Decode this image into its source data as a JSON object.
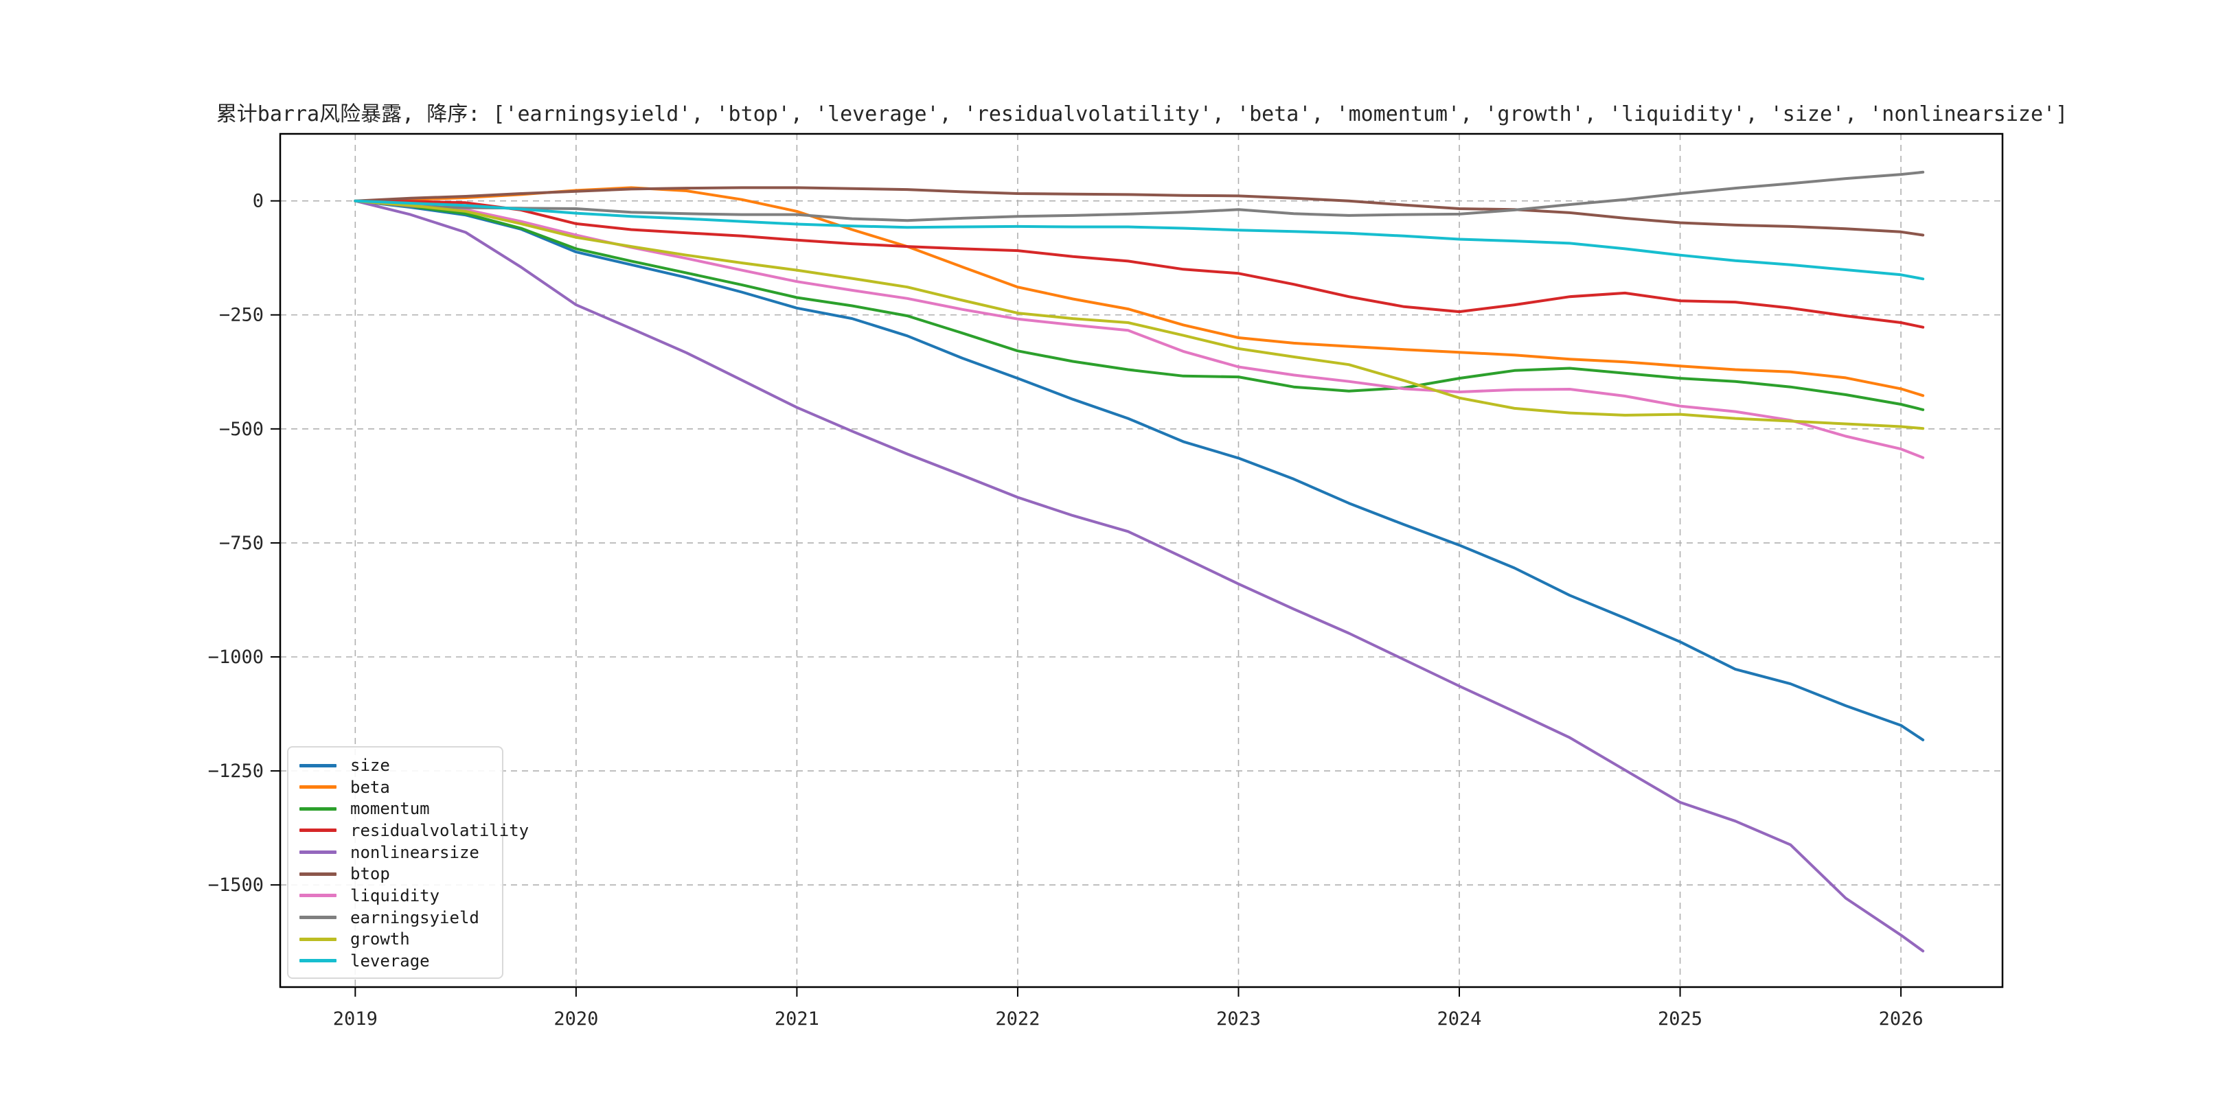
{
  "chart_data": {
    "type": "line",
    "title": "累计barra风险暴露, 降序: ['earningsyield', 'btop', 'leverage', 'residualvolatility', 'beta', 'momentum', 'growth', 'liquidity', 'size', 'nonlinearsize']",
    "xlabel": "",
    "ylabel": "",
    "xlim": [
      2018.66,
      2026.46
    ],
    "ylim": [
      -1724,
      147
    ],
    "grid": true,
    "grid_style": "dashed",
    "legend_position": "lower-left",
    "x_ticks": [
      {
        "value": 2019,
        "label": "2019"
      },
      {
        "value": 2020,
        "label": "2020"
      },
      {
        "value": 2021,
        "label": "2021"
      },
      {
        "value": 2022,
        "label": "2022"
      },
      {
        "value": 2023,
        "label": "2023"
      },
      {
        "value": 2024,
        "label": "2024"
      },
      {
        "value": 2025,
        "label": "2025"
      },
      {
        "value": 2026,
        "label": "2026"
      }
    ],
    "y_ticks": [
      {
        "value": 0,
        "label": "0"
      },
      {
        "value": -250,
        "label": "−250"
      },
      {
        "value": -500,
        "label": "−500"
      },
      {
        "value": -750,
        "label": "−750"
      },
      {
        "value": -1000,
        "label": "−1000"
      },
      {
        "value": -1250,
        "label": "−1250"
      },
      {
        "value": -1500,
        "label": "−1500"
      }
    ],
    "x": [
      2019.0,
      2019.25,
      2019.5,
      2019.75,
      2020.0,
      2020.25,
      2020.5,
      2020.75,
      2021.0,
      2021.25,
      2021.5,
      2021.75,
      2022.0,
      2022.25,
      2022.5,
      2022.75,
      2023.0,
      2023.25,
      2023.5,
      2023.75,
      2024.0,
      2024.25,
      2024.5,
      2024.75,
      2025.0,
      2025.25,
      2025.5,
      2025.75,
      2026.0,
      2026.1
    ],
    "series": [
      {
        "name": "size",
        "color": "#1f77b4",
        "values": [
          0,
          -14,
          -31,
          -62,
          -112,
          -140,
          -168,
          -200,
          -235,
          -258,
          -296,
          -345,
          -389,
          -435,
          -477,
          -528,
          -564,
          -610,
          -663,
          -710,
          -755,
          -805,
          -865,
          -915,
          -967,
          -1027,
          -1059,
          -1107,
          -1150,
          -1182
        ]
      },
      {
        "name": "beta",
        "color": "#ff7f0e",
        "values": [
          0,
          3,
          7,
          14,
          23,
          29,
          22,
          3,
          -23,
          -63,
          -100,
          -145,
          -189,
          -215,
          -237,
          -272,
          -300,
          -312,
          -319,
          -326,
          -332,
          -338,
          -347,
          -353,
          -362,
          -370,
          -375,
          -388,
          -412,
          -427
        ]
      },
      {
        "name": "momentum",
        "color": "#2ca02c",
        "values": [
          0,
          -12,
          -28,
          -60,
          -105,
          -132,
          -158,
          -184,
          -212,
          -230,
          -252,
          -290,
          -329,
          -352,
          -370,
          -384,
          -386,
          -408,
          -417,
          -410,
          -389,
          -372,
          -367,
          -378,
          -389,
          -396,
          -408,
          -425,
          -446,
          -458
        ]
      },
      {
        "name": "residualvolatility",
        "color": "#d62728",
        "values": [
          0,
          -1,
          -4,
          -20,
          -50,
          -63,
          -70,
          -77,
          -86,
          -94,
          -100,
          -105,
          -109,
          -122,
          -132,
          -150,
          -159,
          -183,
          -210,
          -232,
          -243,
          -228,
          -210,
          -202,
          -219,
          -222,
          -235,
          -252,
          -267,
          -277
        ]
      },
      {
        "name": "nonlinearsize",
        "color": "#9467bd",
        "values": [
          0,
          -30,
          -69,
          -145,
          -228,
          -280,
          -333,
          -393,
          -453,
          -505,
          -555,
          -602,
          -650,
          -690,
          -725,
          -782,
          -840,
          -895,
          -948,
          -1006,
          -1064,
          -1120,
          -1177,
          -1248,
          -1319,
          -1360,
          -1412,
          -1529,
          -1610,
          -1645
        ]
      },
      {
        "name": "btop",
        "color": "#8c564b",
        "values": [
          0,
          6,
          10,
          16,
          21,
          26,
          28,
          29,
          29,
          27,
          25,
          20,
          16,
          15,
          14,
          12,
          11,
          6,
          0,
          -9,
          -17,
          -19,
          -26,
          -38,
          -48,
          -53,
          -56,
          -61,
          -68,
          -75
        ]
      },
      {
        "name": "liquidity",
        "color": "#e377c2",
        "values": [
          0,
          -8,
          -19,
          -45,
          -75,
          -102,
          -126,
          -152,
          -177,
          -196,
          -214,
          -238,
          -259,
          -272,
          -284,
          -330,
          -364,
          -382,
          -396,
          -412,
          -419,
          -414,
          -413,
          -428,
          -450,
          -462,
          -481,
          -516,
          -544,
          -563
        ]
      },
      {
        "name": "earningsyield",
        "color": "#7f7f7f",
        "values": [
          0,
          -12,
          -15,
          -16,
          -17,
          -25,
          -28,
          -30,
          -30,
          -39,
          -43,
          -38,
          -34,
          -32,
          -29,
          -25,
          -19,
          -28,
          -32,
          -30,
          -29,
          -20,
          -8,
          3,
          16,
          28,
          38,
          49,
          58,
          63
        ]
      },
      {
        "name": "growth",
        "color": "#bcbd22",
        "values": [
          0,
          -10,
          -23,
          -50,
          -80,
          -100,
          -119,
          -136,
          -152,
          -170,
          -189,
          -218,
          -246,
          -258,
          -267,
          -295,
          -324,
          -342,
          -359,
          -394,
          -432,
          -455,
          -465,
          -470,
          -468,
          -477,
          -483,
          -489,
          -495,
          -499
        ]
      },
      {
        "name": "leverage",
        "color": "#17becf",
        "values": [
          0,
          -5,
          -10,
          -18,
          -27,
          -34,
          -39,
          -45,
          -51,
          -55,
          -58,
          -57,
          -56,
          -57,
          -57,
          -60,
          -64,
          -67,
          -71,
          -77,
          -84,
          -88,
          -93,
          -105,
          -119,
          -131,
          -140,
          -151,
          -162,
          -171
        ]
      }
    ]
  },
  "style": {
    "grid_color": "#b0b0b0",
    "spine_color": "#000000",
    "tick_color": "#262626",
    "line_width": 4,
    "background": "#ffffff"
  }
}
